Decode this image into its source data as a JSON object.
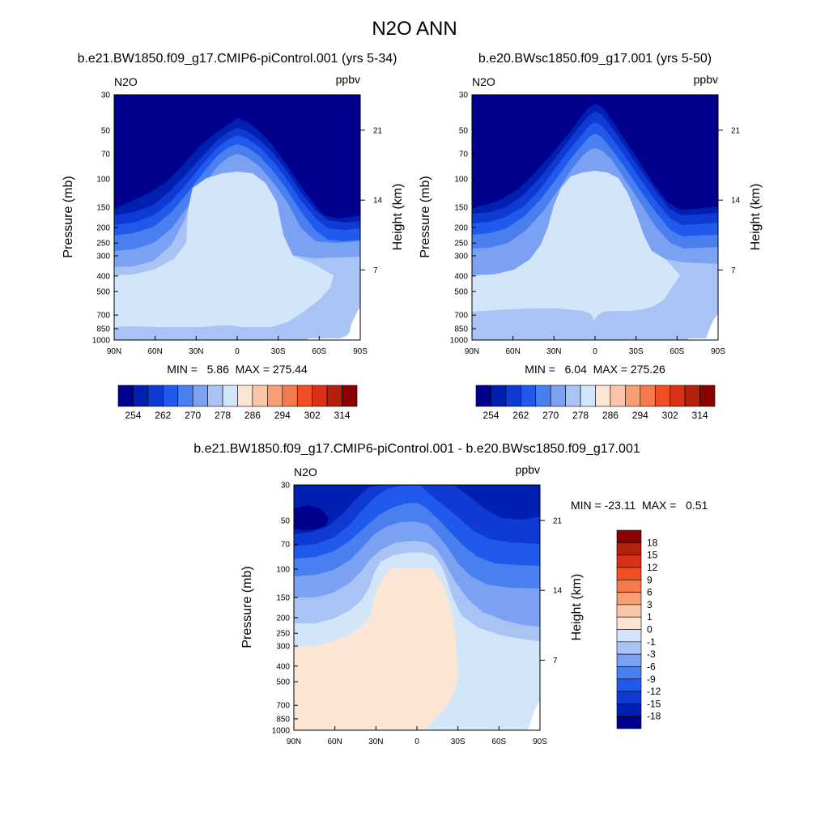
{
  "figure_title": "N2O ANN",
  "chart_data": [
    {
      "type": "heatmap",
      "id": "left",
      "title": "b.e21.BW1850.f09_g17.CMIP6-piControl.001 (yrs 5-34)",
      "left_string": "N2O",
      "right_string": "ppbv",
      "ylabel": "Pressure (mb)",
      "ylabel_right": "Height (km)",
      "x_ticks": [
        "90N",
        "60N",
        "30N",
        "0",
        "30S",
        "60S",
        "90S"
      ],
      "y_ticks": [
        "30",
        "50",
        "70",
        "100",
        "150",
        "200",
        "250",
        "300",
        "400",
        "500",
        "700",
        "850",
        "1000"
      ],
      "height_ticks": [
        "21",
        "14",
        "7"
      ],
      "ylim_mb": [
        1000,
        30
      ],
      "log_pressure_axis": true,
      "min_max_label": "MIN =   5.86  MAX = 275.44",
      "min": 5.86,
      "max": 275.44,
      "colorbar": {
        "orientation": "horizontal",
        "levels": [
          250,
          254,
          258,
          262,
          266,
          270,
          274,
          278,
          282,
          286,
          290,
          294,
          298,
          302,
          306,
          310,
          314
        ],
        "tick_labels": [
          "254",
          "262",
          "270",
          "278",
          "286",
          "294",
          "302",
          "314"
        ],
        "colors": [
          "#00008c",
          "#0020b2",
          "#0f3ad3",
          "#1f5aed",
          "#4a7ff0",
          "#7aa1f2",
          "#a9c3f5",
          "#d3e5f8",
          "#fde5d6",
          "#fbc6a8",
          "#f89d74",
          "#f57a4b",
          "#ef4f22",
          "#da3016",
          "#b3200c",
          "#8b0000"
        ]
      },
      "contours": [
        {
          "band": "< 250",
          "color": "#00008c",
          "region": "stratosphere background (top, extends to ~150 mb at poles)"
        },
        {
          "band": "250-254",
          "color": "#0020b2",
          "top_pressure_mb": 42
        },
        {
          "band": "254-258",
          "color": "#0f3ad3",
          "top_pressure_mb": 50
        },
        {
          "band": "258-262",
          "color": "#1f5aed",
          "top_pressure_mb": 57
        },
        {
          "band": "262-266",
          "color": "#4a7ff0",
          "top_pressure_mb": 64
        },
        {
          "band": "266-270",
          "color": "#7aa1f2",
          "top_pressure_mb": 75
        },
        {
          "band": "270-274",
          "color": "#a9c3f5",
          "top_pressure_mb": 88
        },
        {
          "band": "274-278",
          "color": "#d3e5f8",
          "region": "troposphere core to ~400 mb (south of equator to ~600 mb)"
        }
      ]
    },
    {
      "type": "heatmap",
      "id": "right",
      "title": "b.e20.BWsc1850.f09_g17.001 (yrs 5-50)",
      "left_string": "N2O",
      "right_string": "ppbv",
      "ylabel": "Pressure (mb)",
      "ylabel_right": "Height (km)",
      "x_ticks": [
        "90N",
        "60N",
        "30N",
        "0",
        "30S",
        "60S",
        "90S"
      ],
      "y_ticks": [
        "30",
        "50",
        "70",
        "100",
        "150",
        "200",
        "250",
        "300",
        "400",
        "500",
        "700",
        "850",
        "1000"
      ],
      "height_ticks": [
        "21",
        "14",
        "7"
      ],
      "ylim_mb": [
        1000,
        30
      ],
      "log_pressure_axis": true,
      "min_max_label": "MIN =   6.04  MAX = 275.26",
      "min": 6.04,
      "max": 275.26,
      "colorbar": {
        "orientation": "horizontal",
        "levels": [
          250,
          254,
          258,
          262,
          266,
          270,
          274,
          278,
          282,
          286,
          290,
          294,
          298,
          302,
          306,
          310,
          314
        ],
        "tick_labels": [
          "254",
          "262",
          "270",
          "278",
          "286",
          "294",
          "302",
          "314"
        ],
        "colors": [
          "#00008c",
          "#0020b2",
          "#0f3ad3",
          "#1f5aed",
          "#4a7ff0",
          "#7aa1f2",
          "#a9c3f5",
          "#d3e5f8",
          "#fde5d6",
          "#fbc6a8",
          "#f89d74",
          "#f57a4b",
          "#ef4f22",
          "#da3016",
          "#b3200c",
          "#8b0000"
        ]
      }
    },
    {
      "type": "heatmap",
      "id": "diff",
      "title": "b.e21.BW1850.f09_g17.CMIP6-piControl.001 - b.e20.BWsc1850.f09_g17.001",
      "left_string": "N2O",
      "right_string": "ppbv",
      "ylabel": "Pressure (mb)",
      "ylabel_right": "Height (km)",
      "x_ticks": [
        "90N",
        "60N",
        "30N",
        "0",
        "30S",
        "60S",
        "90S"
      ],
      "y_ticks": [
        "30",
        "50",
        "70",
        "100",
        "150",
        "200",
        "250",
        "300",
        "400",
        "500",
        "700",
        "850",
        "1000"
      ],
      "height_ticks": [
        "21",
        "14",
        "7"
      ],
      "ylim_mb": [
        1000,
        30
      ],
      "log_pressure_axis": true,
      "min_max_label": "MIN = -23.11  MAX =   0.51",
      "min": -23.11,
      "max": 0.51,
      "colorbar": {
        "orientation": "vertical",
        "tick_labels": [
          "18",
          "15",
          "12",
          "9",
          "6",
          "3",
          "1",
          "0",
          "-1",
          "-3",
          "-6",
          "-9",
          "-12",
          "-15",
          "-18"
        ],
        "colors": [
          "#8b0000",
          "#b3200c",
          "#da3016",
          "#ef4f22",
          "#f57a4b",
          "#f89d74",
          "#fbc6a8",
          "#fde5d6",
          "#d3e5f8",
          "#a9c3f5",
          "#7aa1f2",
          "#4a7ff0",
          "#1f5aed",
          "#0f3ad3",
          "#0020b2",
          "#00008c"
        ]
      }
    }
  ]
}
